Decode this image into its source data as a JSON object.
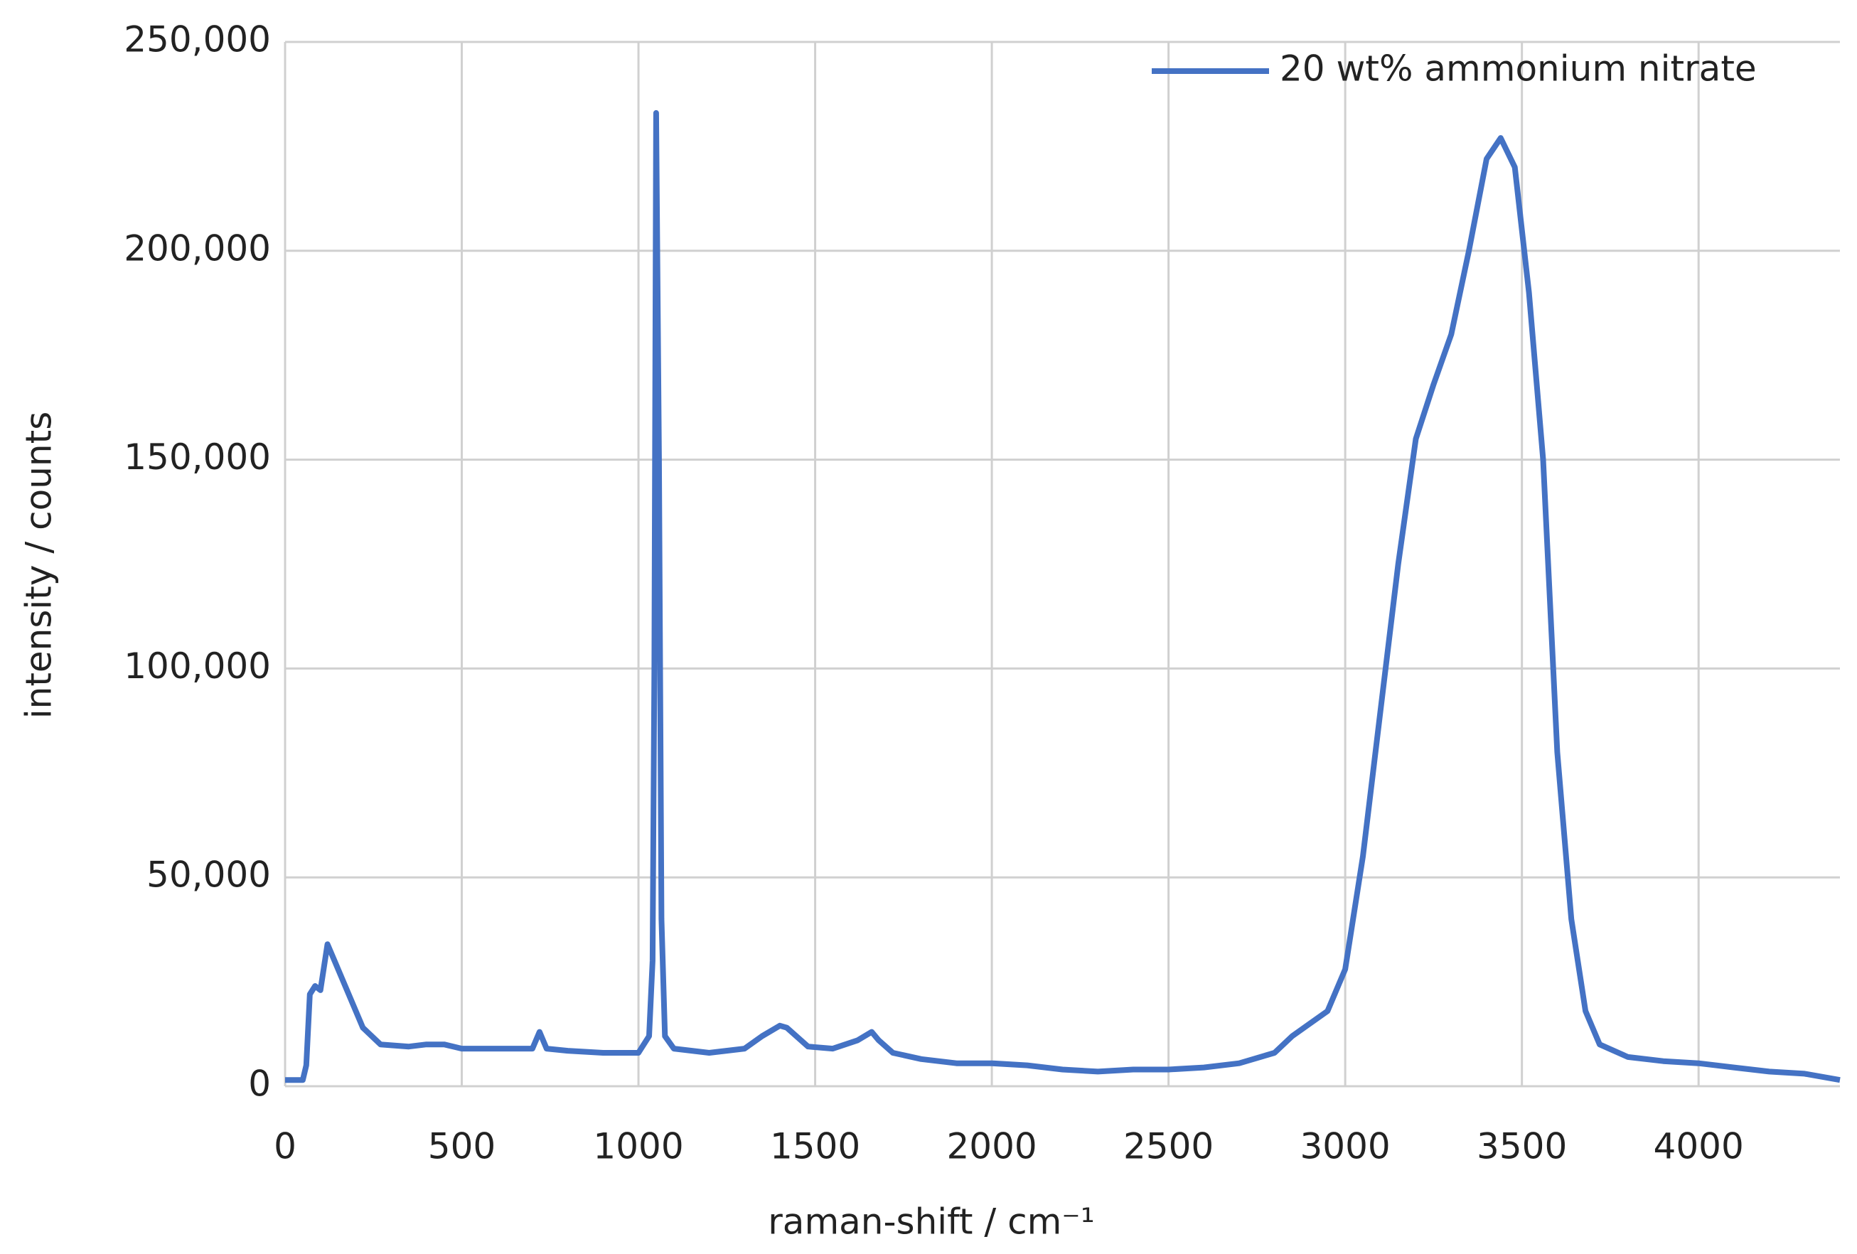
{
  "chart_data": {
    "type": "line",
    "xlabel": "raman-shift / cm⁻¹",
    "ylabel": "intensity / counts",
    "x": [
      0,
      50,
      60,
      70,
      85,
      100,
      120,
      140,
      180,
      220,
      270,
      350,
      400,
      450,
      500,
      600,
      700,
      720,
      740,
      800,
      900,
      1000,
      1030,
      1040,
      1045,
      1050,
      1058,
      1065,
      1075,
      1100,
      1200,
      1300,
      1350,
      1400,
      1420,
      1480,
      1550,
      1620,
      1660,
      1680,
      1720,
      1800,
      1900,
      2000,
      2100,
      2200,
      2300,
      2400,
      2500,
      2600,
      2700,
      2800,
      2850,
      2900,
      2950,
      3000,
      3050,
      3100,
      3150,
      3200,
      3250,
      3300,
      3350,
      3400,
      3440,
      3480,
      3520,
      3560,
      3600,
      3640,
      3680,
      3720,
      3800,
      3900,
      4000,
      4100,
      4200,
      4300,
      4400
    ],
    "series": [
      {
        "name": "20 wt% ammonium nitrate",
        "color": "#4472c4",
        "values": [
          1500,
          1500,
          5000,
          22000,
          24000,
          23000,
          34000,
          30000,
          22000,
          14000,
          10000,
          9500,
          10000,
          10000,
          9000,
          9000,
          9000,
          13000,
          9000,
          8500,
          8000,
          8000,
          12000,
          30000,
          100000,
          233000,
          150000,
          40000,
          12000,
          9000,
          8000,
          9000,
          12000,
          14500,
          14000,
          9500,
          9000,
          11000,
          13000,
          11000,
          8000,
          6500,
          5500,
          5500,
          5000,
          4000,
          3500,
          4000,
          4000,
          4500,
          5500,
          8000,
          12000,
          15000,
          18000,
          28000,
          55000,
          90000,
          125000,
          155000,
          168000,
          180000,
          200000,
          222000,
          227000,
          220000,
          190000,
          150000,
          80000,
          40000,
          18000,
          10000,
          7000,
          6000,
          5500,
          4500,
          3500,
          3000,
          1500
        ]
      }
    ],
    "xlim": [
      0,
      4400
    ],
    "xticks": [
      0,
      500,
      1000,
      1500,
      2000,
      2500,
      3000,
      3500,
      4000
    ],
    "ylim": [
      0,
      250000
    ],
    "yticks": [
      0,
      {
        "value": 50000,
        "label": "50,000"
      },
      {
        "value": 100000,
        "label": "100,000"
      },
      {
        "value": 150000,
        "label": "150,000"
      },
      {
        "value": 200000,
        "label": "200,000"
      },
      {
        "value": 250000,
        "label": "250,000"
      }
    ],
    "grid": true,
    "legend": "top-right"
  }
}
